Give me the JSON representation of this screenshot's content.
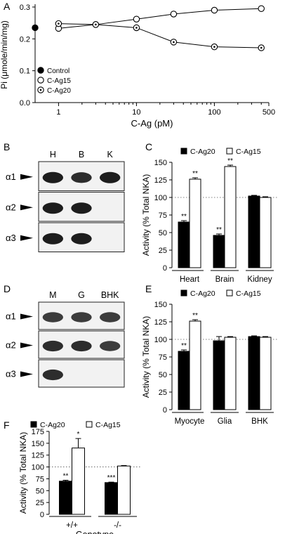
{
  "panels": {
    "A": {
      "letter": "A"
    },
    "B": {
      "letter": "B",
      "lanes": [
        "H",
        "B",
        "K"
      ],
      "rows": [
        "α1",
        "α2",
        "α3"
      ]
    },
    "C": {
      "letter": "C"
    },
    "D": {
      "letter": "D",
      "lanes": [
        "M",
        "G",
        "BHK"
      ],
      "rows": [
        "α1",
        "α2",
        "α3"
      ]
    },
    "E": {
      "letter": "E"
    },
    "F": {
      "letter": "F"
    }
  },
  "chart_data": [
    {
      "id": "A",
      "type": "line",
      "xlabel": "C-Ag (pM)",
      "ylabel": "Pi (μmole/min/mg)",
      "xscale": "log",
      "xlim": [
        0.5,
        500
      ],
      "ylim": [
        0.0,
        0.3
      ],
      "xticks": [
        1,
        10,
        100,
        500
      ],
      "xtick_labels": [
        "1",
        "10",
        "100",
        "500"
      ],
      "yticks": [
        0.0,
        0.1,
        0.2,
        0.3
      ],
      "ytick_labels": [
        "0.0",
        "0.1",
        "0.2",
        "0.3"
      ],
      "legend_position": "bottom-left",
      "series": [
        {
          "name": "Control",
          "marker": "filled",
          "x": [
            0.5
          ],
          "y": [
            0.235
          ]
        },
        {
          "name": "C-Ag15",
          "marker": "open",
          "x": [
            1,
            3,
            10,
            30,
            100,
            400
          ],
          "y": [
            0.233,
            0.245,
            0.262,
            0.278,
            0.29,
            0.295
          ]
        },
        {
          "name": "C-Ag20",
          "marker": "dotted",
          "x": [
            1,
            3,
            10,
            30,
            100,
            400
          ],
          "y": [
            0.248,
            0.245,
            0.235,
            0.19,
            0.175,
            0.172
          ]
        }
      ]
    },
    {
      "id": "C",
      "type": "bar",
      "ylabel": "Activity (% Total NKA)",
      "ylim": [
        0,
        150
      ],
      "yticks": [
        0,
        25,
        50,
        75,
        100,
        125,
        150
      ],
      "ytick_labels": [
        "0",
        "25",
        "50",
        "75",
        "100",
        "125",
        "150"
      ],
      "reference_line": 100,
      "legend_position": "top",
      "categories": [
        "Heart",
        "Brain",
        "Kidney"
      ],
      "series": [
        {
          "name": "C-Ag20",
          "fill": "#000000",
          "values": [
            65,
            46,
            102
          ],
          "errors": [
            2,
            2,
            1
          ],
          "stars": [
            "**",
            "**",
            ""
          ]
        },
        {
          "name": "C-Ag15",
          "fill": "#ffffff",
          "values": [
            126,
            144,
            100
          ],
          "errors": [
            2,
            2,
            1
          ],
          "stars": [
            "**",
            "**",
            ""
          ]
        }
      ]
    },
    {
      "id": "E",
      "type": "bar",
      "ylabel": "Activity (% Total NKA)",
      "ylim": [
        0,
        150
      ],
      "yticks": [
        0,
        25,
        50,
        75,
        100,
        125,
        150
      ],
      "ytick_labels": [
        "0",
        "25",
        "50",
        "75",
        "100",
        "125",
        "150"
      ],
      "reference_line": 100,
      "legend_position": "top",
      "categories": [
        "Myocyte",
        "Glia",
        "BHK"
      ],
      "series": [
        {
          "name": "C-Ag20",
          "fill": "#000000",
          "values": [
            83,
            98,
            104
          ],
          "errors": [
            2,
            6,
            1
          ],
          "stars": [
            "**",
            "",
            ""
          ]
        },
        {
          "name": "C-Ag15",
          "fill": "#ffffff",
          "values": [
            126,
            103,
            103
          ],
          "errors": [
            2,
            1,
            1
          ],
          "stars": [
            "**",
            "",
            ""
          ]
        }
      ]
    },
    {
      "id": "F",
      "type": "bar",
      "xlabel": "Genotype",
      "ylabel": "Activity (% Total NKA)",
      "ylim": [
        0,
        175
      ],
      "yticks": [
        0,
        25,
        50,
        75,
        100,
        125,
        150,
        175
      ],
      "ytick_labels": [
        "0",
        "25",
        "50",
        "75",
        "100",
        "125",
        "150",
        "175"
      ],
      "reference_line": 100,
      "legend_position": "top",
      "categories": [
        "+/+",
        "-/-"
      ],
      "series": [
        {
          "name": "C-Ag20",
          "fill": "#000000",
          "values": [
            70,
            67
          ],
          "errors": [
            2,
            1
          ],
          "stars": [
            "**",
            "***"
          ]
        },
        {
          "name": "C-Ag15",
          "fill": "#ffffff",
          "values": [
            140,
            102
          ],
          "errors": [
            20,
            1
          ],
          "stars": [
            "*",
            ""
          ]
        }
      ]
    }
  ]
}
